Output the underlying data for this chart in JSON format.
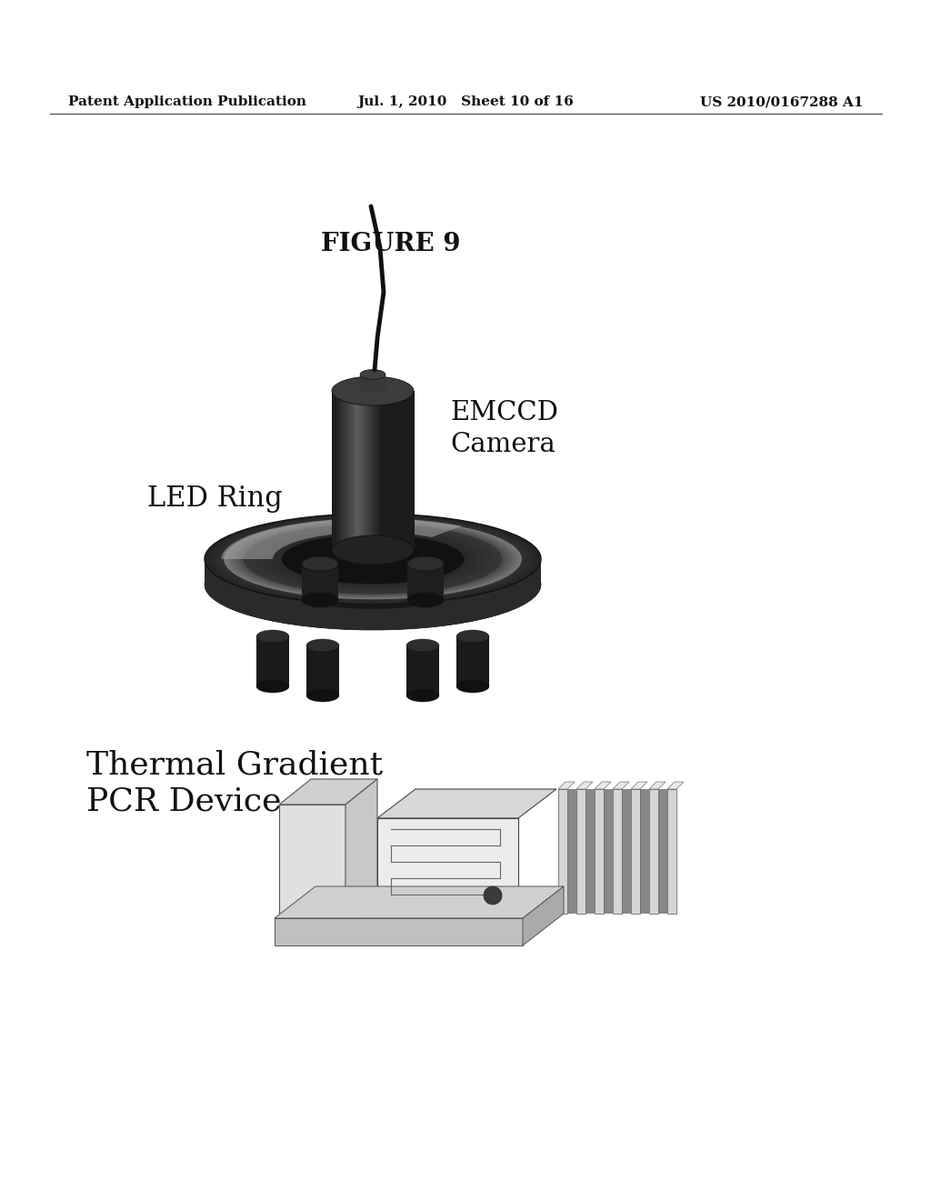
{
  "background_color": "#ffffff",
  "header_left": "Patent Application Publication",
  "header_center": "Jul. 1, 2010   Sheet 10 of 16",
  "header_right": "US 2010/0167288 A1",
  "figure_title": "FIGURE 9",
  "label_emccd": "EMCCD\nCamera",
  "label_led": "LED Ring",
  "label_thermal": "Thermal Gradient\nPCR Device",
  "header_fontsize": 11,
  "fig_title_fontsize": 20,
  "label_fontsize": 22
}
